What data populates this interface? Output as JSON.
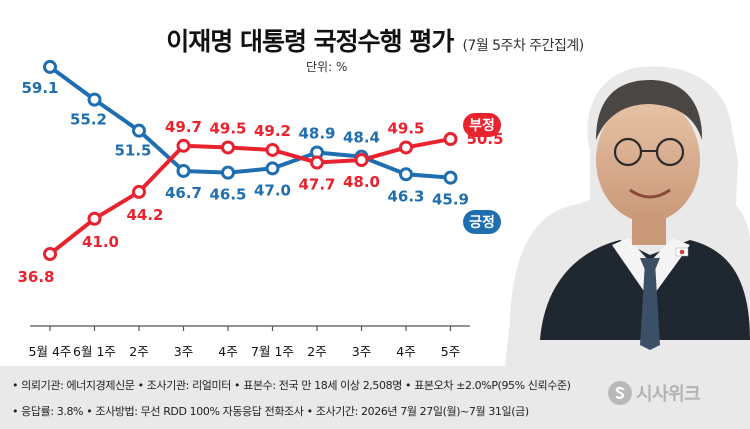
{
  "title": "이재명 대통령 국정수행 평가",
  "subtitle": "(7월 5주차 주간집계)",
  "unit_label": "단위: %",
  "colors": {
    "negative": "#e8232e",
    "positive": "#1f6eb0",
    "footer_bg": "#e9e9e9"
  },
  "chart_data": {
    "type": "line",
    "categories": [
      "5월 4주",
      "6월 1주",
      "2주",
      "3주",
      "4주",
      "7월 1주",
      "2주",
      "3주",
      "4주",
      "5주"
    ],
    "series": [
      {
        "name": "긍정",
        "color": "#1f6eb0",
        "values": [
          59.1,
          55.2,
          51.5,
          46.7,
          46.5,
          47.0,
          48.9,
          48.4,
          46.3,
          45.9
        ]
      },
      {
        "name": "부정",
        "color": "#e8232e",
        "values": [
          36.8,
          41.0,
          44.2,
          49.7,
          49.5,
          49.2,
          47.7,
          48.0,
          49.5,
          50.5
        ]
      }
    ],
    "value_labels": {
      "positive": [
        "59.1",
        "55.2",
        "51.5",
        "46.7",
        "46.5",
        "47.0",
        "48.9",
        "48.4",
        "46.3",
        "45.9"
      ],
      "negative": [
        "36.8",
        "41.0",
        "44.2",
        "49.7",
        "49.5",
        "49.2",
        "47.7",
        "48.0",
        "49.5",
        "50.5"
      ]
    },
    "legend": [
      "부정",
      "긍정"
    ],
    "ylim": [
      35,
      60
    ],
    "grid": false
  },
  "photo": {
    "icon": "person-photo"
  },
  "footer": {
    "line1": "• 의뢰기관: 에너지경제신문 • 조사기관: 리얼미터 • 표본수: 전국 만 18세 이상 2,508명 • 표본오차 ±2.0%P(95% 신뢰수준)",
    "line2": "• 응답률: 3.8% • 조사방법: 무선 RDD 100% 자동응답 전화조사 • 조사기간: 2026년 7월 27일(월)~7월 31일(금)"
  },
  "brand": {
    "name": "시사위크",
    "icon": "s-logo-icon"
  }
}
